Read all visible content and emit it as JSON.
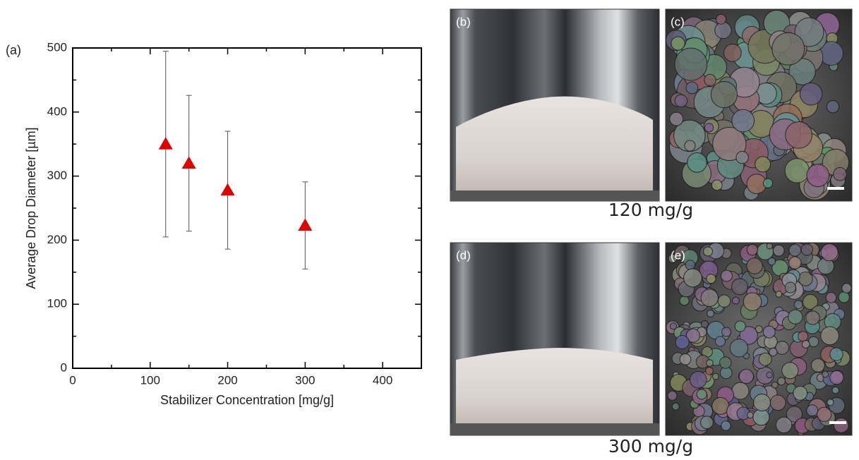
{
  "chart_data": {
    "type": "scatter",
    "panel_label": "(a)",
    "xlabel": "Stabilizer Concentration [mg/g]",
    "ylabel": "Average Drop Diameter [µm]",
    "x": [
      120,
      150,
      200,
      300
    ],
    "values": [
      350,
      320,
      278,
      223
    ],
    "errors": [
      145,
      106,
      92,
      68
    ],
    "color": "#e00000",
    "marker": "triangle",
    "xlim": [
      0,
      450
    ],
    "xticks": [
      0,
      100,
      200,
      300,
      400
    ],
    "xminorticks": [
      50,
      150,
      250,
      350
    ],
    "ylim": [
      0,
      500
    ],
    "yticks": [
      0,
      100,
      200,
      300,
      400,
      500
    ],
    "yminorticks": [
      50,
      150,
      250,
      350,
      450
    ]
  },
  "panels": [
    {
      "label": "(b)"
    },
    {
      "label": "(c)"
    },
    {
      "label": "(d)"
    },
    {
      "label": "(e)"
    }
  ],
  "captions": [
    "120 mg/g",
    "300 mg/g"
  ]
}
